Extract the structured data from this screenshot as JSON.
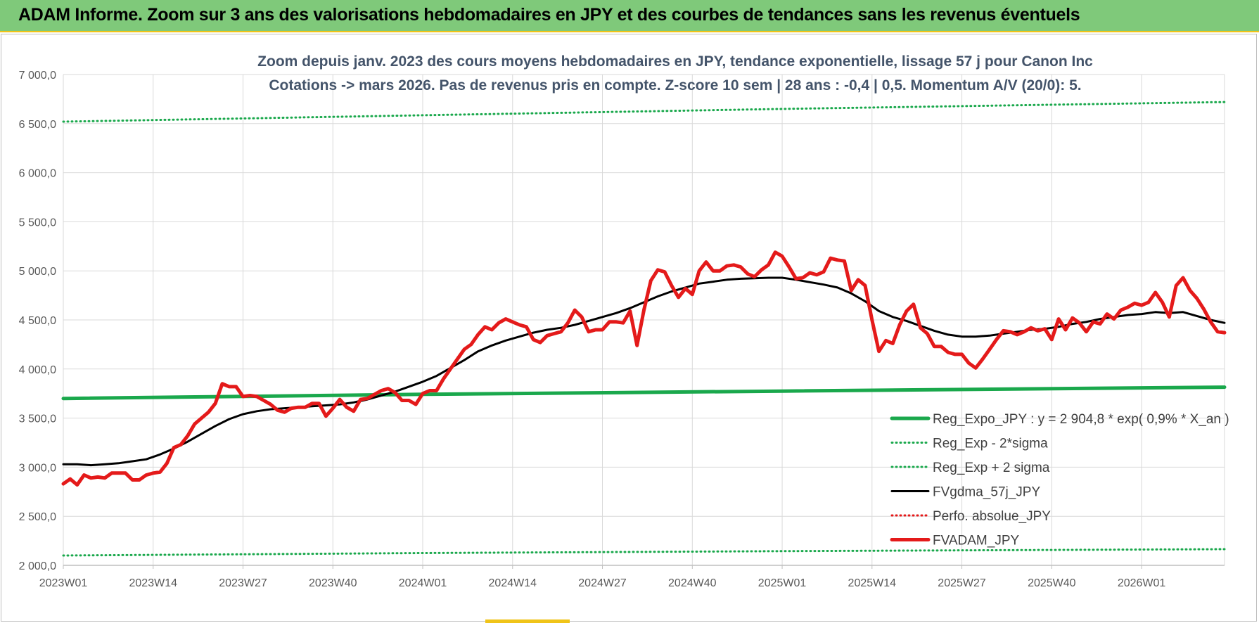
{
  "banner": {
    "title": "ADAM Informe. Zoom sur 3 ans des valorisations hebdomadaires en JPY et des courbes de tendances sans les revenus éventuels"
  },
  "colors": {
    "banner_bg": "#7fc97a",
    "banner_border": "#f0c419",
    "title_text": "#44546a",
    "green": "#1aa84c",
    "black": "#000000",
    "red": "#e41a1a",
    "grid": "#d9d9d9",
    "axis_text": "#595959"
  },
  "chart_data": {
    "type": "line",
    "title": "Zoom depuis janv. 2023 des cours moyens hebdomadaires en JPY, tendance exponentielle, lissage 57 j pour Canon Inc",
    "subtitle": "Cotations -> mars 2026. Pas de revenus pris en compte. Z-score 10 sem | 28 ans : -0,4 | 0,5. Momentum A/V (20/0): 5.",
    "xlabel": "",
    "ylabel": "",
    "ylim": [
      2000,
      7000
    ],
    "yticks": [
      2000,
      2500,
      3000,
      3500,
      4000,
      4500,
      5000,
      5500,
      6000,
      6500,
      7000
    ],
    "ytick_labels": [
      "2 000,0",
      "2 500,0",
      "3 000,0",
      "3 500,0",
      "4 000,0",
      "4 500,0",
      "5 000,0",
      "5 500,0",
      "6 000,0",
      "6 500,0",
      "7 000,0"
    ],
    "xlim_weeks": [
      1,
      169
    ],
    "xticks": [
      {
        "label": "2023W01",
        "week": 1
      },
      {
        "label": "2023W14",
        "week": 14
      },
      {
        "label": "2023W27",
        "week": 27
      },
      {
        "label": "2023W40",
        "week": 40
      },
      {
        "label": "2024W01",
        "week": 53
      },
      {
        "label": "2024W14",
        "week": 66
      },
      {
        "label": "2024W27",
        "week": 79
      },
      {
        "label": "2024W40",
        "week": 92
      },
      {
        "label": "2025W01",
        "week": 105
      },
      {
        "label": "2025W14",
        "week": 118
      },
      {
        "label": "2025W27",
        "week": 131
      },
      {
        "label": "2025W40",
        "week": 144
      },
      {
        "label": "2026W01",
        "week": 157
      }
    ],
    "grid": true,
    "legend_position": "bottom-right",
    "series": [
      {
        "name": "Reg_Expo_JPY : y = 2 904,8 * exp( 0,9% * X_an )",
        "style": "solid-thick",
        "color": "#1aa84c",
        "points": [
          [
            1,
            3700
          ],
          [
            53,
            3742
          ],
          [
            105,
            3775
          ],
          [
            169,
            3815
          ]
        ]
      },
      {
        "name": "Reg_Exp - 2*sigma",
        "style": "dotted",
        "color": "#1aa84c",
        "points": [
          [
            1,
            2100
          ],
          [
            53,
            2125
          ],
          [
            105,
            2145
          ],
          [
            169,
            2165
          ]
        ]
      },
      {
        "name": "Reg_Exp + 2 sigma",
        "style": "dotted",
        "color": "#1aa84c",
        "points": [
          [
            1,
            6520
          ],
          [
            53,
            6585
          ],
          [
            105,
            6650
          ],
          [
            169,
            6720
          ]
        ]
      },
      {
        "name": "FVgdma_57j_JPY",
        "style": "solid",
        "color": "#000000",
        "points": [
          [
            1,
            3030
          ],
          [
            3,
            3030
          ],
          [
            5,
            3020
          ],
          [
            7,
            3030
          ],
          [
            9,
            3040
          ],
          [
            11,
            3060
          ],
          [
            13,
            3080
          ],
          [
            15,
            3130
          ],
          [
            17,
            3190
          ],
          [
            19,
            3260
          ],
          [
            21,
            3340
          ],
          [
            23,
            3420
          ],
          [
            25,
            3490
          ],
          [
            27,
            3540
          ],
          [
            29,
            3570
          ],
          [
            31,
            3590
          ],
          [
            33,
            3600
          ],
          [
            35,
            3610
          ],
          [
            37,
            3620
          ],
          [
            39,
            3630
          ],
          [
            41,
            3640
          ],
          [
            43,
            3660
          ],
          [
            45,
            3690
          ],
          [
            47,
            3730
          ],
          [
            49,
            3770
          ],
          [
            51,
            3820
          ],
          [
            53,
            3870
          ],
          [
            55,
            3930
          ],
          [
            57,
            4010
          ],
          [
            59,
            4090
          ],
          [
            61,
            4180
          ],
          [
            63,
            4240
          ],
          [
            65,
            4290
          ],
          [
            67,
            4330
          ],
          [
            69,
            4370
          ],
          [
            71,
            4400
          ],
          [
            73,
            4420
          ],
          [
            75,
            4450
          ],
          [
            77,
            4490
          ],
          [
            79,
            4530
          ],
          [
            81,
            4570
          ],
          [
            83,
            4620
          ],
          [
            85,
            4680
          ],
          [
            87,
            4740
          ],
          [
            89,
            4790
          ],
          [
            91,
            4830
          ],
          [
            93,
            4870
          ],
          [
            95,
            4890
          ],
          [
            97,
            4910
          ],
          [
            99,
            4920
          ],
          [
            101,
            4925
          ],
          [
            103,
            4930
          ],
          [
            105,
            4930
          ],
          [
            107,
            4910
          ],
          [
            109,
            4885
          ],
          [
            111,
            4860
          ],
          [
            113,
            4830
          ],
          [
            115,
            4770
          ],
          [
            117,
            4690
          ],
          [
            119,
            4590
          ],
          [
            121,
            4530
          ],
          [
            123,
            4490
          ],
          [
            125,
            4440
          ],
          [
            127,
            4390
          ],
          [
            129,
            4350
          ],
          [
            131,
            4330
          ],
          [
            133,
            4330
          ],
          [
            135,
            4340
          ],
          [
            137,
            4360
          ],
          [
            139,
            4380
          ],
          [
            141,
            4400
          ],
          [
            143,
            4410
          ],
          [
            145,
            4430
          ],
          [
            147,
            4460
          ],
          [
            149,
            4480
          ],
          [
            151,
            4510
          ],
          [
            153,
            4530
          ],
          [
            155,
            4550
          ],
          [
            157,
            4560
          ],
          [
            159,
            4580
          ],
          [
            161,
            4570
          ],
          [
            163,
            4580
          ],
          [
            165,
            4540
          ],
          [
            167,
            4500
          ],
          [
            169,
            4470
          ]
        ]
      },
      {
        "name": "Perfo. absolue_JPY",
        "style": "dotted",
        "color": "#e41a1a",
        "points": []
      },
      {
        "name": "FVADAM_JPY",
        "style": "solid-thick",
        "color": "#e41a1a",
        "points": [
          [
            1,
            2830
          ],
          [
            2,
            2880
          ],
          [
            3,
            2820
          ],
          [
            4,
            2920
          ],
          [
            5,
            2890
          ],
          [
            6,
            2900
          ],
          [
            7,
            2890
          ],
          [
            8,
            2940
          ],
          [
            9,
            2940
          ],
          [
            10,
            2940
          ],
          [
            11,
            2870
          ],
          [
            12,
            2870
          ],
          [
            13,
            2920
          ],
          [
            14,
            2940
          ],
          [
            15,
            2950
          ],
          [
            16,
            3040
          ],
          [
            17,
            3200
          ],
          [
            18,
            3230
          ],
          [
            19,
            3320
          ],
          [
            20,
            3440
          ],
          [
            21,
            3500
          ],
          [
            22,
            3560
          ],
          [
            23,
            3650
          ],
          [
            24,
            3850
          ],
          [
            25,
            3820
          ],
          [
            26,
            3820
          ],
          [
            27,
            3720
          ],
          [
            28,
            3730
          ],
          [
            29,
            3720
          ],
          [
            30,
            3680
          ],
          [
            31,
            3640
          ],
          [
            32,
            3580
          ],
          [
            33,
            3560
          ],
          [
            34,
            3600
          ],
          [
            35,
            3610
          ],
          [
            36,
            3610
          ],
          [
            37,
            3650
          ],
          [
            38,
            3650
          ],
          [
            39,
            3520
          ],
          [
            40,
            3600
          ],
          [
            41,
            3690
          ],
          [
            42,
            3610
          ],
          [
            43,
            3570
          ],
          [
            44,
            3690
          ],
          [
            45,
            3700
          ],
          [
            46,
            3740
          ],
          [
            47,
            3780
          ],
          [
            48,
            3800
          ],
          [
            49,
            3760
          ],
          [
            50,
            3680
          ],
          [
            51,
            3680
          ],
          [
            52,
            3640
          ],
          [
            53,
            3750
          ],
          [
            54,
            3780
          ],
          [
            55,
            3780
          ],
          [
            56,
            3900
          ],
          [
            57,
            4000
          ],
          [
            58,
            4100
          ],
          [
            59,
            4200
          ],
          [
            60,
            4250
          ],
          [
            61,
            4350
          ],
          [
            62,
            4430
          ],
          [
            63,
            4400
          ],
          [
            64,
            4470
          ],
          [
            65,
            4510
          ],
          [
            66,
            4480
          ],
          [
            67,
            4450
          ],
          [
            68,
            4430
          ],
          [
            69,
            4300
          ],
          [
            70,
            4270
          ],
          [
            71,
            4340
          ],
          [
            72,
            4360
          ],
          [
            73,
            4380
          ],
          [
            74,
            4470
          ],
          [
            75,
            4600
          ],
          [
            76,
            4530
          ],
          [
            77,
            4380
          ],
          [
            78,
            4400
          ],
          [
            79,
            4400
          ],
          [
            80,
            4480
          ],
          [
            81,
            4480
          ],
          [
            82,
            4470
          ],
          [
            83,
            4590
          ],
          [
            84,
            4240
          ],
          [
            85,
            4600
          ],
          [
            86,
            4900
          ],
          [
            87,
            5010
          ],
          [
            88,
            4990
          ],
          [
            89,
            4850
          ],
          [
            90,
            4730
          ],
          [
            91,
            4820
          ],
          [
            92,
            4760
          ],
          [
            93,
            5000
          ],
          [
            94,
            5090
          ],
          [
            95,
            5000
          ],
          [
            96,
            5000
          ],
          [
            97,
            5050
          ],
          [
            98,
            5060
          ],
          [
            99,
            5040
          ],
          [
            100,
            4970
          ],
          [
            101,
            4940
          ],
          [
            102,
            5010
          ],
          [
            103,
            5060
          ],
          [
            104,
            5190
          ],
          [
            105,
            5150
          ],
          [
            106,
            5040
          ],
          [
            107,
            4920
          ],
          [
            108,
            4930
          ],
          [
            109,
            4980
          ],
          [
            110,
            4960
          ],
          [
            111,
            4990
          ],
          [
            112,
            5130
          ],
          [
            113,
            5110
          ],
          [
            114,
            5100
          ],
          [
            115,
            4800
          ],
          [
            116,
            4910
          ],
          [
            117,
            4850
          ],
          [
            118,
            4500
          ],
          [
            119,
            4180
          ],
          [
            120,
            4290
          ],
          [
            121,
            4260
          ],
          [
            122,
            4450
          ],
          [
            123,
            4590
          ],
          [
            124,
            4660
          ],
          [
            125,
            4420
          ],
          [
            126,
            4360
          ],
          [
            127,
            4230
          ],
          [
            128,
            4230
          ],
          [
            129,
            4170
          ],
          [
            130,
            4150
          ],
          [
            131,
            4150
          ],
          [
            132,
            4060
          ],
          [
            133,
            4010
          ],
          [
            134,
            4100
          ],
          [
            135,
            4200
          ],
          [
            136,
            4300
          ],
          [
            137,
            4390
          ],
          [
            138,
            4380
          ],
          [
            139,
            4350
          ],
          [
            140,
            4380
          ],
          [
            141,
            4420
          ],
          [
            142,
            4390
          ],
          [
            143,
            4410
          ],
          [
            144,
            4300
          ],
          [
            145,
            4510
          ],
          [
            146,
            4400
          ],
          [
            147,
            4520
          ],
          [
            148,
            4470
          ],
          [
            149,
            4380
          ],
          [
            150,
            4480
          ],
          [
            151,
            4460
          ],
          [
            152,
            4560
          ],
          [
            153,
            4510
          ],
          [
            154,
            4600
          ],
          [
            155,
            4630
          ],
          [
            156,
            4670
          ],
          [
            157,
            4650
          ],
          [
            158,
            4680
          ],
          [
            159,
            4780
          ],
          [
            160,
            4680
          ],
          [
            161,
            4530
          ],
          [
            162,
            4850
          ],
          [
            163,
            4930
          ],
          [
            164,
            4800
          ],
          [
            165,
            4720
          ],
          [
            166,
            4610
          ],
          [
            167,
            4480
          ],
          [
            168,
            4380
          ],
          [
            169,
            4370
          ]
        ]
      }
    ]
  }
}
